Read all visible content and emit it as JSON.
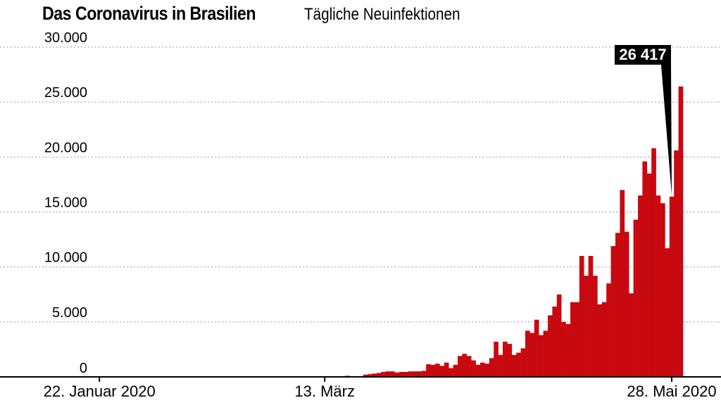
{
  "header": {
    "title": "Das Coronavirus in Brasilien",
    "subtitle": "Tägliche Neuinfektionen"
  },
  "chart_data": {
    "type": "bar",
    "title": "Das Coronavirus in Brasilien",
    "subtitle": "Tägliche Neuinfektionen",
    "bar_color": "#c8090f",
    "grid": true,
    "ylim": [
      0,
      30000
    ],
    "y_ticks": [
      0,
      5000,
      10000,
      15000,
      20000,
      25000,
      30000
    ],
    "y_tick_labels": [
      "0",
      "5.000",
      "10.000",
      "15.000",
      "20.000",
      "25.000",
      "30.000"
    ],
    "x_ticks": [
      {
        "index": 0,
        "label": "22. Januar 2020"
      },
      {
        "index": 50,
        "label": "13. März"
      },
      {
        "index": 127,
        "label": "28. Mai 2020"
      }
    ],
    "annotation": {
      "index": 127,
      "label": "26 417"
    },
    "x_start_label": "22. Januar 2020",
    "values": [
      0,
      0,
      0,
      0,
      0,
      0,
      0,
      0,
      0,
      0,
      0,
      0,
      0,
      0,
      0,
      0,
      0,
      0,
      0,
      0,
      0,
      0,
      0,
      0,
      0,
      0,
      0,
      0,
      0,
      0,
      0,
      0,
      0,
      0,
      0,
      0,
      0,
      0,
      0,
      0,
      0,
      0,
      0,
      0,
      0,
      0,
      0,
      0,
      0,
      0,
      0,
      0,
      0,
      0,
      0,
      100,
      50,
      30,
      30,
      200,
      250,
      300,
      350,
      450,
      500,
      500,
      400,
      450,
      450,
      500,
      500,
      500,
      550,
      1150,
      1100,
      1200,
      1000,
      1300,
      800,
      1100,
      1900,
      2100,
      1900,
      1500,
      1100,
      1300,
      1200,
      1700,
      3200,
      2000,
      3200,
      3000,
      2000,
      2200,
      2600,
      4200,
      4000,
      5200,
      3800,
      4200,
      5600,
      6400,
      7500,
      5000,
      4800,
      6800,
      6800,
      11000,
      9200,
      11000,
      9200,
      6600,
      6800,
      8500,
      11900,
      13100,
      17000,
      13200,
      7600,
      14300,
      16500,
      19600,
      18500,
      20800,
      16500,
      15800,
      11700,
      16400,
      20600,
      26417
    ]
  }
}
